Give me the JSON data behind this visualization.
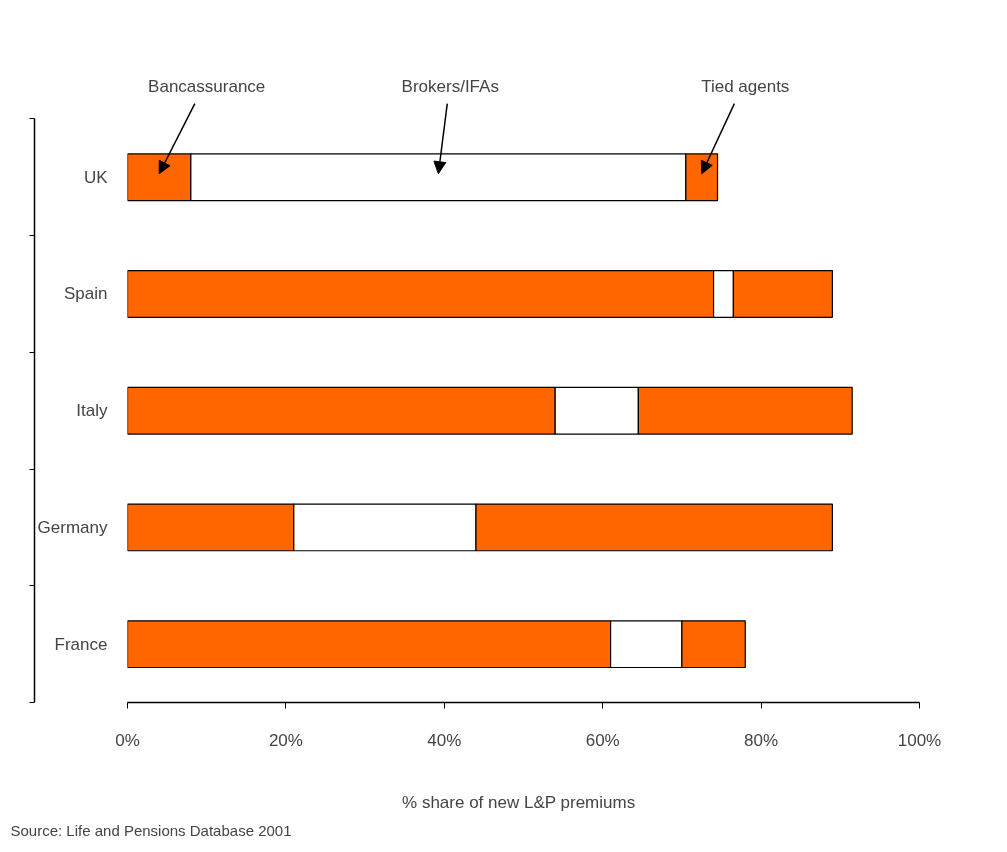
{
  "chart_data": {
    "type": "bar",
    "orientation": "horizontal",
    "stacked": true,
    "categories": [
      "UK",
      "Spain",
      "Italy",
      "Germany",
      "France"
    ],
    "series": [
      {
        "name": "Bancassurance",
        "color": "#ff6600",
        "values": [
          8,
          74,
          54,
          21,
          61
        ]
      },
      {
        "name": "Brokers/IFAs",
        "color": "#ffffff",
        "values": [
          62.5,
          2.5,
          10.5,
          23,
          9
        ]
      },
      {
        "name": "Tied agents",
        "color": "#ff6600",
        "values": [
          4,
          12.5,
          27,
          45,
          8
        ]
      }
    ],
    "xlim": [
      0,
      100
    ],
    "xticks": [
      {
        "value": 0,
        "label": "0%"
      },
      {
        "value": 20,
        "label": "20%"
      },
      {
        "value": 40,
        "label": "40%"
      },
      {
        "value": 60,
        "label": "60%"
      },
      {
        "value": 80,
        "label": "80%"
      },
      {
        "value": 100,
        "label": "100%"
      }
    ],
    "xlabel": "% share of new  L&P  premiums",
    "grid": false,
    "annotations": [
      "Source: Life and Pensions Database 2001"
    ]
  }
}
